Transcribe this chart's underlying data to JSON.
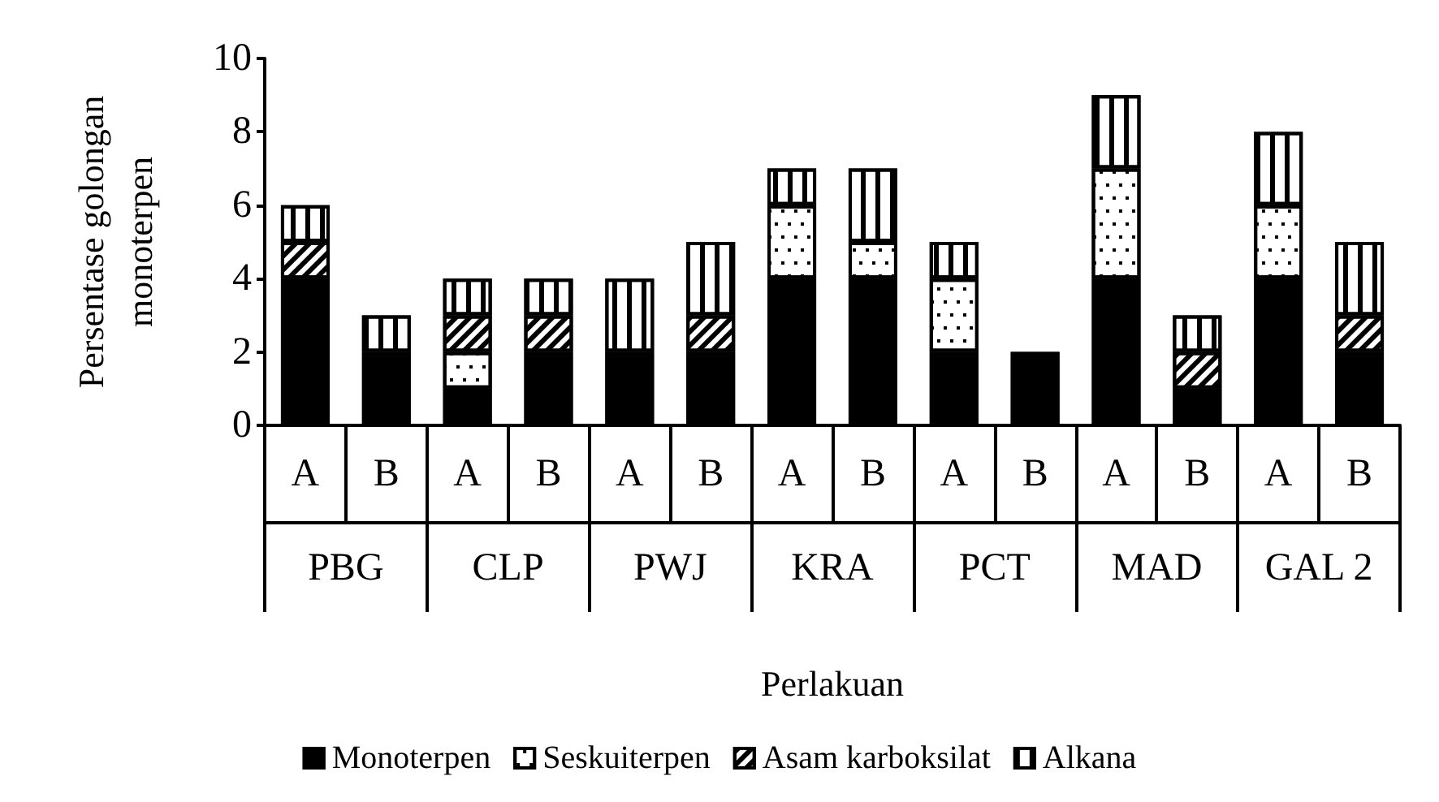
{
  "chart_data": {
    "type": "bar",
    "stacked": true,
    "xlabel": "Perlakuan",
    "ylabel": "Persentase golongan monoterpen",
    "categories": [
      "A",
      "B",
      "A",
      "B",
      "A",
      "B",
      "A",
      "B",
      "A",
      "B",
      "A",
      "B",
      "A",
      "B"
    ],
    "annotations": [
      "PBG",
      "CLP",
      "PWJ",
      "KRA",
      "PCT",
      "MAD",
      "GAL 2"
    ],
    "series": [
      {
        "name": "Monoterpen",
        "color": "#000000",
        "values": [
          4,
          2,
          1,
          2,
          2,
          2,
          4,
          4,
          2,
          2,
          4,
          1,
          4,
          2
        ]
      },
      {
        "name": "Seskuiterpen",
        "color": "#ffffff",
        "values": [
          0,
          0,
          1,
          0,
          0,
          0,
          2,
          1,
          2,
          0,
          3,
          0,
          2,
          0
        ]
      },
      {
        "name": "Asam karboksilat",
        "color": "#ffffff",
        "values": [
          1,
          0,
          1,
          1,
          0,
          1,
          0,
          0,
          0,
          0,
          0,
          1,
          0,
          1
        ]
      },
      {
        "name": "Alkana",
        "color": "#ffffff",
        "values": [
          1,
          1,
          1,
          1,
          2,
          2,
          1,
          2,
          1,
          0,
          2,
          1,
          2,
          2
        ]
      }
    ],
    "ylim": [
      0,
      10
    ],
    "yticks": [
      0,
      2,
      4,
      6,
      8,
      10
    ],
    "grid": false,
    "legend": "bottom"
  }
}
